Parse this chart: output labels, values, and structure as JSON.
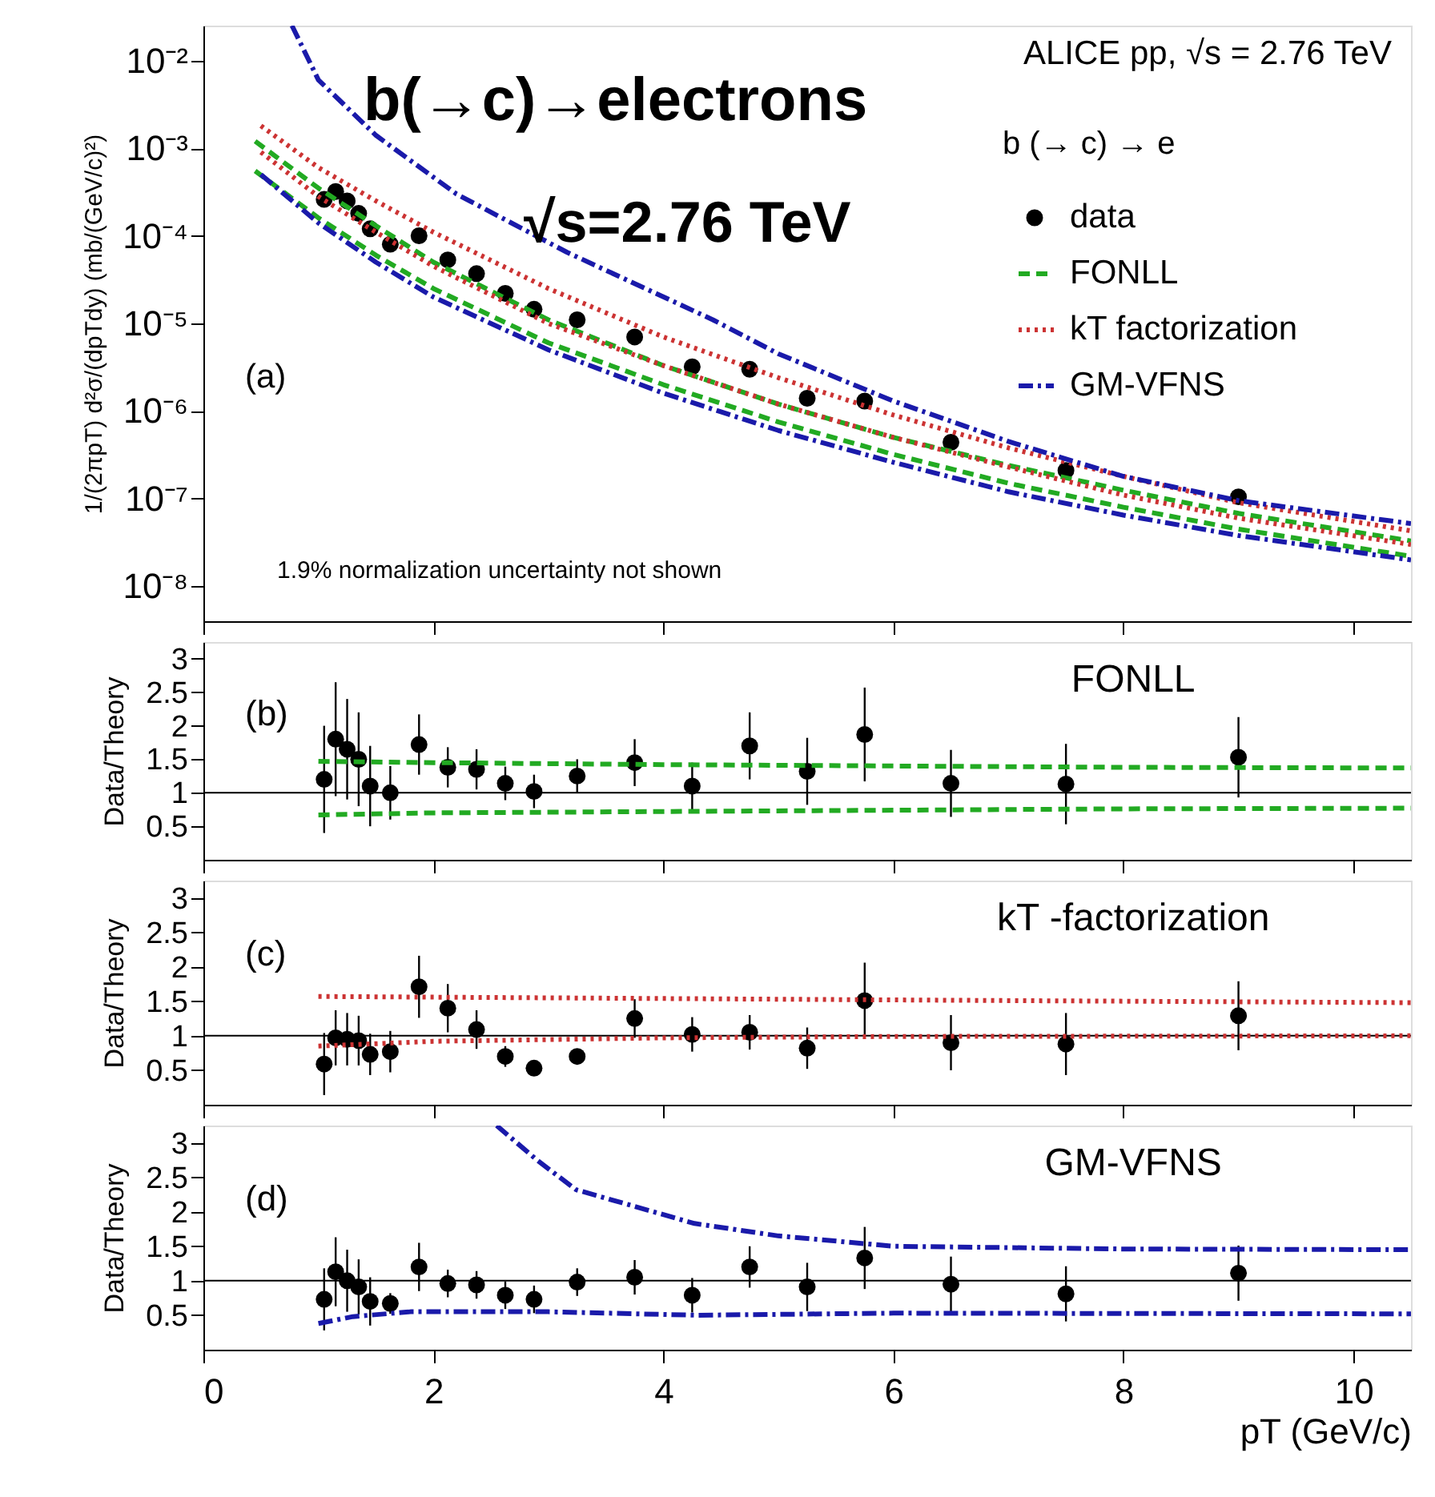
{
  "chart_data": [
    {
      "type": "scatter",
      "title": "b(→c)→electrons",
      "subtitle": "√s=2.76 TeV",
      "ylabel": "1/(2πpT) d²σ/(dpTdy) (mb/(GeV/c)²)",
      "xlim": [
        0,
        10.5
      ],
      "xticks": [
        0,
        2,
        4,
        6,
        8,
        10
      ],
      "ylim": [
        4e-09,
        0.025
      ],
      "log": "y",
      "tick_labels": "y",
      "legend": "top right",
      "legend_title": "b (→ c) → e",
      "yticks": [
        {
          "value": 1e-08,
          "label": "10⁻⁸"
        },
        {
          "value": 1e-07,
          "label": "10⁻⁷"
        },
        {
          "value": 1e-06,
          "label": "10⁻⁶"
        },
        {
          "value": 1e-05,
          "label": "10⁻⁵"
        },
        {
          "value": 0.0001,
          "label": "10⁻⁴"
        },
        {
          "value": 0.001,
          "label": "10⁻³"
        },
        {
          "value": 0.01,
          "label": "10⁻²"
        }
      ],
      "annotations": [
        "ALICE pp, √s = 2.76 TeV",
        "(a)",
        "1.9% normalization uncertainty not shown"
      ],
      "series": [
        {
          "name": "data",
          "marker": "circle",
          "color": "#000000",
          "x": [
            1.05,
            1.15,
            1.25,
            1.35,
            1.45,
            1.625,
            1.875,
            2.125,
            2.375,
            2.625,
            2.875,
            3.25,
            3.75,
            4.25,
            4.75,
            5.25,
            5.75,
            6.5,
            7.5,
            9.0
          ],
          "values": [
            0.00026,
            0.00032,
            0.00025,
            0.00018,
            0.00012,
            8e-05,
            0.0001,
            5.3e-05,
            3.7e-05,
            2.2e-05,
            1.45e-05,
            1.1e-05,
            7e-06,
            3.2e-06,
            3e-06,
            1.4e-06,
            1.3e-06,
            4.4e-07,
            2.1e-07,
            1.05e-07
          ]
        },
        {
          "name": "FONLL",
          "type": "line",
          "line_style": "dashed",
          "color": "#22aa22",
          "x": [
            0.45,
            1,
            1.5,
            2,
            3,
            4,
            5,
            6,
            7,
            8,
            9,
            10.5
          ],
          "values": [
            0.0012,
            0.00035,
            0.00013,
            5e-05,
            1.1e-05,
            3.3e-06,
            1.2e-06,
            5e-07,
            2.4e-07,
            1.25e-07,
            6.8e-08,
            3.3e-08
          ]
        },
        {
          "type": "line",
          "line_style": "dashed",
          "color": "#22aa22",
          "x": [
            0.45,
            1,
            1.5,
            2,
            3,
            4,
            5,
            6,
            7,
            8,
            9,
            10.5
          ],
          "values": [
            0.00055,
            0.00016,
            6e-05,
            2.5e-05,
            6e-06,
            2e-06,
            7.5e-07,
            3.2e-07,
            1.5e-07,
            8e-08,
            4.5e-08,
            2.2e-08
          ]
        },
        {
          "name": "kT factorization",
          "type": "line",
          "line_style": "dotted",
          "color": "#cc3333",
          "x": [
            0.5,
            1,
            1.5,
            2,
            3,
            4,
            5,
            6,
            7,
            8,
            9,
            10.5
          ],
          "values": [
            0.0018,
            0.0006,
            0.00025,
            0.00011,
            2.5e-05,
            7e-06,
            2.4e-06,
            9e-07,
            3.8e-07,
            1.8e-07,
            9e-08,
            4.3e-08
          ]
        },
        {
          "type": "line",
          "line_style": "dotted",
          "color": "#cc3333",
          "x": [
            0.5,
            1,
            1.5,
            2,
            3,
            4,
            5,
            6,
            7,
            8,
            9,
            10.5
          ],
          "values": [
            0.0009,
            0.00028,
            0.00011,
            4.5e-05,
            1e-05,
            3.3e-06,
            1.2e-06,
            5e-07,
            2.3e-07,
            1.1e-07,
            6e-08,
            3e-08
          ]
        },
        {
          "name": "GM-VFNS",
          "type": "line",
          "line_style": "dashdot",
          "color": "#1a1aaa",
          "x": [
            0.77,
            1,
            1.5,
            2.2,
            3.16,
            4.43,
            5,
            6,
            7,
            8,
            9,
            10.5
          ],
          "values": [
            0.025,
            0.006,
            0.0014,
            0.0003,
            6.5e-05,
            1.1e-05,
            4.5e-06,
            1.3e-06,
            4.5e-07,
            1.8e-07,
            9.5e-08,
            5.2e-08
          ]
        },
        {
          "type": "line",
          "line_style": "dashdot",
          "color": "#1a1aaa",
          "x": [
            0.5,
            1,
            1.5,
            2,
            3,
            4,
            5,
            6,
            7,
            8,
            9,
            10.5
          ],
          "values": [
            0.0005,
            0.00014,
            5e-05,
            2e-05,
            5e-06,
            1.6e-06,
            6e-07,
            2.6e-07,
            1.2e-07,
            6.5e-08,
            3.8e-08,
            2e-08
          ]
        }
      ]
    },
    {
      "type": "scatter",
      "ylabel": "Data/Theory",
      "xlim": [
        0,
        10.5
      ],
      "xticks": [
        0,
        2,
        4,
        6,
        8,
        10
      ],
      "ylim": [
        0,
        3.25
      ],
      "yticks": [
        0.5,
        1,
        1.5,
        2,
        2.5,
        3
      ],
      "tick_labels": "y",
      "annotations": [
        "(b)",
        "FONLL"
      ],
      "ref_lines": [
        {
          "axis": "y",
          "value": 1,
          "color": "#000000"
        }
      ],
      "series": [
        {
          "marker": "circle",
          "color": "#000000",
          "x": [
            1.05,
            1.15,
            1.25,
            1.35,
            1.45,
            1.625,
            1.875,
            2.125,
            2.375,
            2.625,
            2.875,
            3.25,
            3.75,
            4.25,
            4.75,
            5.25,
            5.75,
            6.5,
            7.5,
            9.0
          ],
          "values": [
            1.2,
            1.8,
            1.65,
            1.5,
            1.1,
            1.0,
            1.72,
            1.38,
            1.35,
            1.14,
            1.02,
            1.25,
            1.45,
            1.1,
            1.7,
            1.32,
            1.87,
            1.14,
            1.13,
            1.53
          ],
          "errors": [
            0.8,
            0.85,
            0.75,
            0.7,
            0.6,
            0.4,
            0.45,
            0.3,
            0.3,
            0.25,
            0.25,
            0.25,
            0.35,
            0.35,
            0.5,
            0.5,
            0.7,
            0.5,
            0.6,
            0.6
          ]
        },
        {
          "type": "line",
          "line_style": "dashed",
          "color": "#22aa22",
          "x": [
            1,
            2,
            4,
            6,
            8,
            10.5
          ],
          "values": [
            1.47,
            1.45,
            1.42,
            1.4,
            1.38,
            1.37
          ]
        },
        {
          "type": "line",
          "line_style": "dashed",
          "color": "#22aa22",
          "x": [
            1,
            2,
            4,
            6,
            8,
            10.5
          ],
          "values": [
            0.67,
            0.7,
            0.72,
            0.74,
            0.76,
            0.77
          ]
        }
      ]
    },
    {
      "type": "scatter",
      "ylabel": "Data/Theory",
      "xlim": [
        0,
        10.5
      ],
      "xticks": [
        0,
        2,
        4,
        6,
        8,
        10
      ],
      "ylim": [
        0,
        3.25
      ],
      "yticks": [
        0.5,
        1,
        1.5,
        2,
        2.5,
        3
      ],
      "tick_labels": "y",
      "annotations": [
        "(c)",
        "kT -factorization"
      ],
      "ref_lines": [
        {
          "axis": "y",
          "value": 1,
          "color": "#000000"
        }
      ],
      "series": [
        {
          "marker": "circle",
          "color": "#000000",
          "x": [
            1.05,
            1.15,
            1.25,
            1.35,
            1.45,
            1.625,
            1.875,
            2.125,
            2.375,
            2.625,
            2.875,
            3.25,
            3.75,
            4.25,
            4.75,
            5.25,
            5.75,
            6.5,
            7.5,
            9.0
          ],
          "values": [
            0.59,
            0.97,
            0.95,
            0.93,
            0.73,
            0.77,
            1.71,
            1.4,
            1.09,
            0.7,
            0.53,
            0.7,
            1.25,
            1.02,
            1.05,
            0.82,
            1.51,
            0.9,
            0.88,
            1.29
          ],
          "errors": [
            0.45,
            0.4,
            0.38,
            0.36,
            0.3,
            0.3,
            0.45,
            0.35,
            0.28,
            0.15,
            0.1,
            0.1,
            0.28,
            0.25,
            0.25,
            0.3,
            0.55,
            0.4,
            0.45,
            0.5
          ]
        },
        {
          "type": "line",
          "line_style": "dotted",
          "color": "#cc3333",
          "x": [
            1,
            4,
            7,
            10.5
          ],
          "values": [
            1.57,
            1.54,
            1.51,
            1.48
          ]
        },
        {
          "type": "line",
          "line_style": "dotted",
          "color": "#cc3333",
          "x": [
            1,
            2,
            4,
            6,
            10.5
          ],
          "values": [
            0.85,
            0.92,
            0.97,
            0.99,
            1.0
          ]
        }
      ]
    },
    {
      "type": "scatter",
      "ylabel": "Data/Theory",
      "xlabel": "pT (GeV/c)",
      "xlim": [
        0,
        10.5
      ],
      "xticks": [
        0,
        2,
        4,
        6,
        8,
        10
      ],
      "ylim": [
        0,
        3.25
      ],
      "yticks": [
        0.5,
        1,
        1.5,
        2,
        2.5,
        3
      ],
      "annotations": [
        "(d)",
        "GM-VFNS"
      ],
      "ref_lines": [
        {
          "axis": "y",
          "value": 1,
          "color": "#000000"
        }
      ],
      "series": [
        {
          "marker": "circle",
          "color": "#000000",
          "x": [
            1.05,
            1.15,
            1.25,
            1.35,
            1.45,
            1.625,
            1.875,
            2.125,
            2.375,
            2.625,
            2.875,
            3.25,
            3.75,
            4.25,
            4.75,
            5.25,
            5.75,
            6.5,
            7.5,
            9.0
          ],
          "values": [
            0.73,
            1.13,
            1.0,
            0.91,
            0.7,
            0.67,
            1.2,
            0.96,
            0.94,
            0.79,
            0.73,
            0.98,
            1.05,
            0.79,
            1.2,
            0.91,
            1.33,
            0.95,
            0.81,
            1.11
          ],
          "errors": [
            0.45,
            0.5,
            0.45,
            0.4,
            0.35,
            0.15,
            0.35,
            0.2,
            0.2,
            0.2,
            0.2,
            0.2,
            0.25,
            0.25,
            0.3,
            0.35,
            0.45,
            0.4,
            0.4,
            0.4
          ]
        },
        {
          "type": "line",
          "line_style": "dashdot",
          "color": "#1a1aaa",
          "x": [
            2.55,
            2.9,
            3.24,
            4.27,
            5,
            6,
            8,
            10.5
          ],
          "values": [
            3.25,
            2.75,
            2.32,
            1.83,
            1.65,
            1.5,
            1.46,
            1.45
          ]
        },
        {
          "type": "line",
          "line_style": "dashdot",
          "color": "#1a1aaa",
          "x": [
            1,
            1.3,
            1.8,
            3,
            4.3,
            6,
            10.5
          ],
          "values": [
            0.38,
            0.48,
            0.55,
            0.55,
            0.5,
            0.53,
            0.52
          ]
        }
      ]
    }
  ]
}
